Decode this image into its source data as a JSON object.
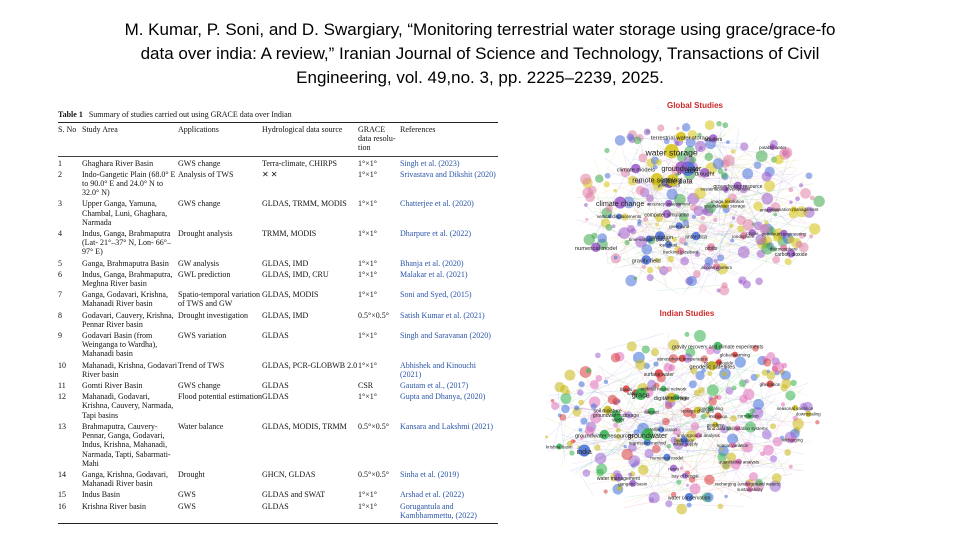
{
  "citation": {
    "line1": "M. Kumar, P. Soni, and D. Swargiary, “Monitoring terrestrial water storage using grace/grace-fo",
    "line2": "data over india: A review,” Iranian Journal of Science and Technology, Transactions of Civil",
    "line3": "Engineering, vol. 49,no. 3, pp. 2225–2239, 2025."
  },
  "table": {
    "label": "Table 1",
    "caption": "Summary of studies carried out using GRACE data over Indian",
    "headers": [
      "S. No",
      "Study Area",
      "Applications",
      "Hydrological data source",
      "GRACE data resolu-tion",
      "References"
    ],
    "rows": [
      {
        "no": "1",
        "area": "Ghaghara River Basin",
        "app": "GWS change",
        "source": "Terra-climate, CHIRPS",
        "res": "1°×1°",
        "ref": "Singh et al. (2023)"
      },
      {
        "no": "2",
        "area": "Indo-Gangetic Plain (68.0° E to 90.0° E and 24.0° N to 32.0° N)",
        "app": "Analysis of TWS",
        "source": "✕ ✕",
        "res": "1°×1°",
        "ref": "Srivastava and Dikshit (2020)"
      },
      {
        "no": "3",
        "area": "Upper Ganga, Yamuna, Chambal, Luni, Ghaghara, Narmada",
        "app": "GWS change",
        "source": "GLDAS, TRMM, MODIS",
        "res": "1°×1°",
        "ref": "Chatterjee et al. (2020)"
      },
      {
        "no": "4",
        "area": "Indus, Ganga, Brahmaputra (Lat- 21°–37° N, Lon- 66°–97° E)",
        "app": "Drought analysis",
        "source": "TRMM, MODIS",
        "res": "1°×1°",
        "ref": "Dharpure et al. (2022)"
      },
      {
        "no": "5",
        "area": "Ganga, Brahmaputra Basin",
        "app": "GW analysis",
        "source": "GLDAS, IMD",
        "res": "1°×1°",
        "ref": "Bhanja et al. (2020)"
      },
      {
        "no": "6",
        "area": "Indus, Ganga, Brahmaputra, Meghna River basin",
        "app": "GWL prediction",
        "source": "GLDAS, IMD, CRU",
        "res": "1°×1°",
        "ref": "Malakar et al. (2021)"
      },
      {
        "no": "7",
        "area": "Ganga, Godavari, Krishna, Mahanadi River basin",
        "app": "Spatio-temporal variation of TWS and GW",
        "source": "GLDAS, MODIS",
        "res": "1°×1°",
        "ref": "Soni and Syed, (2015)"
      },
      {
        "no": "8",
        "area": "Godavari, Cauvery, Krishna, Pennar River basin",
        "app": "Drought investigation",
        "source": "GLDAS, IMD",
        "res": "0.5°×0.5°",
        "ref": "Satish Kumar et al. (2021)"
      },
      {
        "no": "9",
        "area": "Godavari Basin (from Weinganga to Wardha), Mahanadi basin",
        "app": "GWS variation",
        "source": "GLDAS",
        "res": "1°×1°",
        "ref": "Singh and Saravanan (2020)"
      },
      {
        "no": "10",
        "area": "Mahanadi, Krishna, Godavari River basin",
        "app": "Trend of TWS",
        "source": "GLDAS, PCR-GLOBWB 2.0",
        "res": "1°×1°",
        "ref": "Abhishek and Kinouchi (2021)"
      },
      {
        "no": "11",
        "area": "Gomti River Basin",
        "app": "GWS change",
        "source": "GLDAS",
        "res": "CSR",
        "ref": "Gautam et al., (2017)"
      },
      {
        "no": "12",
        "area": "Mahanadi, Godavari, Krishna, Cauvery, Narmada, Tapi basins",
        "app": "Flood potential estimation",
        "source": "GLDAS",
        "res": "1°×1°",
        "ref": "Gupta and Dhanya, (2020)"
      },
      {
        "no": "13",
        "area": "Brahmaputra, Cauvery-Pennar, Ganga, Godavari, Indus, Krishna, Mahanadi, Narmada, Tapti, Sabarmati-Mahi",
        "app": "Water balance",
        "source": "GLDAS, MODIS, TRMM",
        "res": "0.5°×0.5°",
        "ref": "Kansara and Lakshmi (2021)"
      },
      {
        "no": "14",
        "area": "Ganga, Krishna, Godavari, Mahanadi River basin",
        "app": "Drought",
        "source": "GHCN, GLDAS",
        "res": "0.5°×0.5°",
        "ref": "Sinha et al. (2019)"
      },
      {
        "no": "15",
        "area": "Indus Basin",
        "app": "GWS",
        "source": "GLDAS and SWAT",
        "res": "1°×1°",
        "ref": "Arshad et al. (2022)"
      },
      {
        "no": "16",
        "area": "Krishna River basin",
        "app": "GWS",
        "source": "GLDAS",
        "res": "1°×1°",
        "ref": "Gorugantula and Kambhammettu, (2022)"
      }
    ]
  },
  "global_map": {
    "title": "Global Studies",
    "colors": {
      "purple": "#9b59c8",
      "yellow": "#d4c20e",
      "green": "#3ca84a",
      "pink": "#e07fa6",
      "blue": "#4a6fd8",
      "title": "#cc2a2a"
    },
    "terms": [
      {
        "t": "petroleum engineering",
        "c": "purple",
        "s": 6
      },
      {
        "t": "carbon dioxide",
        "c": "purple",
        "s": 7
      },
      {
        "t": "ozone",
        "c": "purple",
        "s": 6
      },
      {
        "t": "thermosphere",
        "c": "pink",
        "s": 6
      },
      {
        "t": "ionosphere",
        "c": "pink",
        "s": 6
      },
      {
        "t": "accelerometers",
        "c": "pink",
        "s": 6
      },
      {
        "t": "orbits",
        "c": "pink",
        "s": 7
      },
      {
        "t": "tracking (position)",
        "c": "pink",
        "s": 6
      },
      {
        "t": "antarctica",
        "c": "blue",
        "s": 7
      },
      {
        "t": "gravity field",
        "c": "blue",
        "s": 8
      },
      {
        "t": "gravitation",
        "c": "blue",
        "s": 8
      },
      {
        "t": "ice sheet",
        "c": "blue",
        "s": 6
      },
      {
        "t": "greenland",
        "c": "blue",
        "s": 6
      },
      {
        "t": "time-variable gravity",
        "c": "blue",
        "s": 6
      },
      {
        "t": "vertical displacements",
        "c": "blue",
        "s": 5
      },
      {
        "t": "numerical model",
        "c": "purple",
        "s": 8
      },
      {
        "t": "computer simulation",
        "c": "purple",
        "s": 7
      },
      {
        "t": "accuracy assessment",
        "c": "purple",
        "s": 6
      },
      {
        "t": "climate change",
        "c": "purple",
        "s": 10
      },
      {
        "t": "climate models",
        "c": "purple",
        "s": 8
      },
      {
        "t": "geophysics",
        "c": "purple",
        "s": 6
      },
      {
        "t": "satellite data",
        "c": "yellow",
        "s": 10
      },
      {
        "t": "remote sensing",
        "c": "yellow",
        "s": 10
      },
      {
        "t": "grace",
        "c": "blue",
        "s": 12
      },
      {
        "t": "groundwater",
        "c": "purple",
        "s": 10
      },
      {
        "t": "water storage",
        "c": "yellow",
        "s": 12
      },
      {
        "t": "terrestrial water storage",
        "c": "yellow",
        "s": 8
      },
      {
        "t": "drought",
        "c": "purple",
        "s": 8
      },
      {
        "t": "aquifers",
        "c": "purple",
        "s": 7
      },
      {
        "t": "potable water",
        "c": "purple",
        "s": 5
      },
      {
        "t": "groundwater resource",
        "c": "purple",
        "s": 7
      },
      {
        "t": "sustainable development",
        "c": "purple",
        "s": 5
      },
      {
        "t": "groundwater storage",
        "c": "yellow",
        "s": 6
      },
      {
        "t": "information management",
        "c": "yellow",
        "s": 5
      },
      {
        "t": "image resolution",
        "c": "yellow",
        "s": 5
      },
      {
        "t": "antarctica",
        "c": "purple",
        "s": 5
      }
    ]
  },
  "india_map": {
    "title": "Indian Studies",
    "colors": {
      "pink": "#e070b8",
      "yellow": "#c9b814",
      "green": "#31b24c",
      "red": "#d83b3b",
      "blue": "#3d6fd9",
      "purple": "#9b64d1",
      "title": "#cc2a2a"
    },
    "terms": [
      {
        "t": "land data assimilation systems",
        "c": "pink",
        "s": 5
      },
      {
        "t": "recharging",
        "c": "pink",
        "s": 5
      },
      {
        "t": "quantitative analysis",
        "c": "pink",
        "s": 5
      },
      {
        "t": "spatial variation",
        "c": "pink",
        "s": 5
      },
      {
        "t": "sustainability",
        "c": "pink",
        "s": 5
      },
      {
        "t": "underground analysis",
        "c": "pink",
        "s": 5
      },
      {
        "t": "recharging (underground waters)",
        "c": "pink",
        "s": 5
      },
      {
        "t": "bay of bengal",
        "c": "purple",
        "s": 5
      },
      {
        "t": "water conservation",
        "c": "blue",
        "s": 7
      },
      {
        "t": "water supply",
        "c": "purple",
        "s": 6
      },
      {
        "t": "hydrology",
        "c": "blue",
        "s": 6
      },
      {
        "t": "numerical model",
        "c": "blue",
        "s": 6
      },
      {
        "t": "rivers",
        "c": "purple",
        "s": 6
      },
      {
        "t": "water management",
        "c": "purple",
        "s": 7
      },
      {
        "t": "gangetic basin",
        "c": "purple",
        "s": 6
      },
      {
        "t": "regression method",
        "c": "blue",
        "s": 6
      },
      {
        "t": "satellite mission",
        "c": "blue",
        "s": 5
      },
      {
        "t": "groundwater resources",
        "c": "green",
        "s": 8
      },
      {
        "t": "india",
        "c": "blue",
        "s": 10
      },
      {
        "t": "groundwater",
        "c": "green",
        "s": 10
      },
      {
        "t": "krishna basin",
        "c": "green",
        "s": 5
      },
      {
        "t": "groundwater storage",
        "c": "green",
        "s": 7
      },
      {
        "t": "soil moisture",
        "c": "yellow",
        "s": 7
      },
      {
        "t": "water",
        "c": "green",
        "s": 7
      },
      {
        "t": "floods",
        "c": "red",
        "s": 6
      },
      {
        "t": "satellites",
        "c": "red",
        "s": 6
      },
      {
        "t": "dataset",
        "c": "green",
        "s": 6
      },
      {
        "t": "grace",
        "c": "green",
        "s": 10
      },
      {
        "t": "digital storage",
        "c": "yellow",
        "s": 8
      },
      {
        "t": "surface water",
        "c": "red",
        "s": 7
      },
      {
        "t": "artificial neural network",
        "c": "green",
        "s": 5
      },
      {
        "t": "forecasting",
        "c": "green",
        "s": 5
      },
      {
        "t": "gravity recovery and climate experiments",
        "c": "green",
        "s": 7
      },
      {
        "t": "atmospheric temperature",
        "c": "red",
        "s": 6
      },
      {
        "t": "carbon dioxide",
        "c": "red",
        "s": 5
      },
      {
        "t": "geodetic satellites",
        "c": "yellow",
        "s": 8
      },
      {
        "t": "global warming",
        "c": "red",
        "s": 5
      },
      {
        "t": "downscaling",
        "c": "green",
        "s": 5
      },
      {
        "t": "storage changes",
        "c": "yellow",
        "s": 6
      },
      {
        "t": "monsoon",
        "c": "red",
        "s": 6
      },
      {
        "t": "gravitation",
        "c": "red",
        "s": 6
      },
      {
        "t": "correlation",
        "c": "green",
        "s": 5
      },
      {
        "t": "seasonal variation",
        "c": "yellow",
        "s": 5
      },
      {
        "t": "downscaling",
        "c": "yellow",
        "s": 5
      },
      {
        "t": "geodesy",
        "c": "yellow",
        "s": 5
      }
    ]
  }
}
